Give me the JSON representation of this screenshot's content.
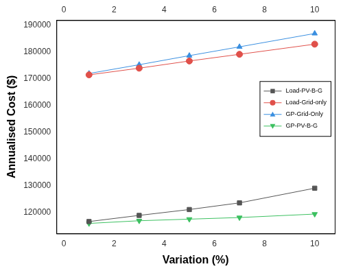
{
  "chart_data": {
    "type": "line",
    "x_label": "Variation (%)",
    "y_label": "Annualised Cost ($)",
    "x": [
      1,
      3,
      5,
      7,
      10
    ],
    "series": [
      {
        "name": "Load-PV-B-G",
        "color": "#555555",
        "marker": "square",
        "values": [
          116500,
          118800,
          121000,
          123500,
          129000
        ]
      },
      {
        "name": "Load-Grid-only",
        "color": "#e0504a",
        "marker": "circle",
        "values": [
          171500,
          174000,
          176700,
          179200,
          183000
        ]
      },
      {
        "name": "GP-Grid-Only",
        "color": "#3a8fe0",
        "marker": "triangle-up",
        "values": [
          172000,
          175300,
          178700,
          182000,
          187000
        ]
      },
      {
        "name": "GP-PV-B-G",
        "color": "#3cc060",
        "marker": "triangle-down",
        "values": [
          115800,
          116800,
          117400,
          118000,
          119300
        ]
      }
    ],
    "xlim": [
      -0.3,
      10.8
    ],
    "xticks": [
      0,
      2,
      4,
      6,
      8,
      10
    ],
    "ylim": [
      112000,
      192000
    ],
    "yticks": [
      120000,
      130000,
      140000,
      150000,
      160000,
      170000,
      180000,
      190000
    ],
    "grid": false,
    "legend": "right"
  }
}
